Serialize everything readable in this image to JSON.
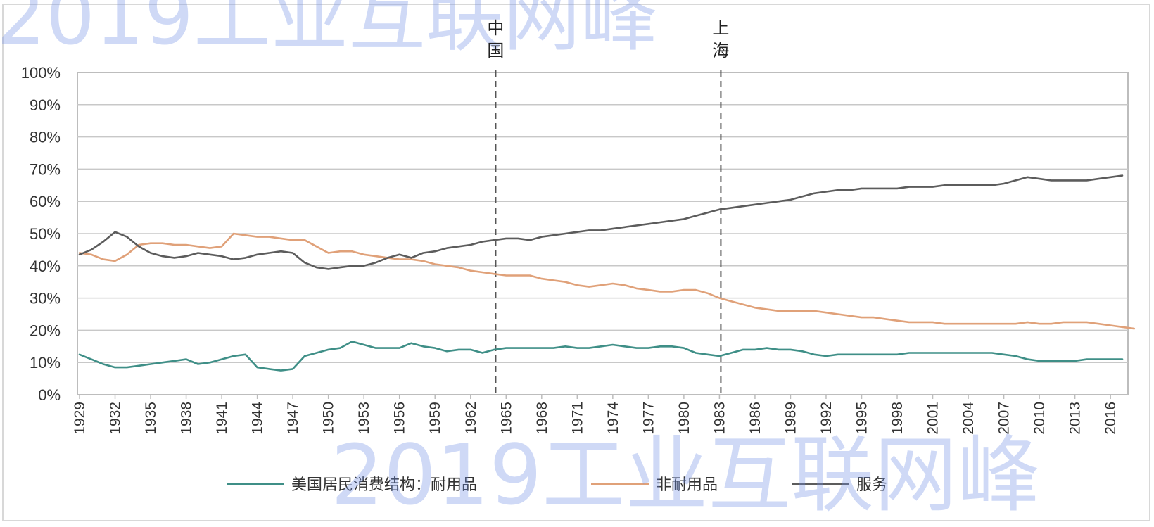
{
  "watermark": {
    "top_text": "2019工业互联网峰",
    "bottom_text": "2019工业互联网峰",
    "color": "#6f8fe6"
  },
  "chart_data": {
    "type": "line",
    "title": "",
    "xlabel": "",
    "ylabel": "",
    "ylim": [
      0,
      100
    ],
    "y_ticks": [
      "0%",
      "10%",
      "20%",
      "30%",
      "40%",
      "50%",
      "60%",
      "70%",
      "80%",
      "90%",
      "100%"
    ],
    "x_ticks": [
      "1929",
      "1932",
      "1935",
      "1938",
      "1941",
      "1944",
      "1947",
      "1950",
      "1953",
      "1956",
      "1959",
      "1962",
      "1965",
      "1968",
      "1971",
      "1974",
      "1977",
      "1980",
      "1983",
      "1986",
      "1989",
      "1992",
      "1995",
      "1998",
      "2001",
      "2004",
      "2007",
      "2010",
      "2013",
      "2016"
    ],
    "x_start": 1929,
    "grid": true,
    "legend_position": "bottom",
    "annotations": [
      {
        "x": 1964,
        "label": "中国"
      },
      {
        "x": 1983,
        "label": "上海"
      }
    ],
    "series": [
      {
        "name": "美国居民消费结构：耐用品",
        "color": "#3f8f87",
        "values": [
          12.5,
          11,
          9.5,
          8.5,
          8.5,
          9,
          9.5,
          10,
          10.5,
          11,
          9.5,
          10,
          11,
          12,
          12.5,
          8.5,
          8,
          7.5,
          8,
          12,
          13,
          14,
          14.5,
          16.5,
          15.5,
          14.5,
          14.5,
          14.5,
          16,
          15,
          14.5,
          13.5,
          14,
          14,
          13,
          14,
          14.5,
          14.5,
          14.5,
          14.5,
          14.5,
          15,
          14.5,
          14.5,
          15,
          15.5,
          15,
          14.5,
          14.5,
          15,
          15,
          14.5,
          13,
          12.5,
          12,
          13,
          14,
          14,
          14.5,
          14,
          14,
          13.5,
          12.5,
          12,
          12.5,
          12.5,
          12.5,
          12.5,
          12.5,
          12.5,
          13,
          13,
          13,
          13,
          13,
          13,
          13,
          13,
          12.5,
          12,
          11,
          10.5,
          10.5,
          10.5,
          10.5,
          11,
          11,
          11,
          11
        ]
      },
      {
        "name": "非耐用品",
        "color": "#e0a179",
        "values": [
          44,
          43.5,
          42,
          41.5,
          43.5,
          46.5,
          47,
          47,
          46.5,
          46.5,
          46,
          45.5,
          46,
          50,
          49.5,
          49,
          49,
          48.5,
          48,
          48,
          46,
          44,
          44.5,
          44.5,
          43.5,
          43,
          42.5,
          42,
          42,
          41.5,
          40.5,
          40,
          39.5,
          38.5,
          38,
          37.5,
          37,
          37,
          37,
          36,
          35.5,
          35,
          34,
          33.5,
          34,
          34.5,
          34,
          33,
          32.5,
          32,
          32,
          32.5,
          32.5,
          31.5,
          30,
          29,
          28,
          27,
          26.5,
          26,
          26,
          26,
          26,
          25.5,
          25,
          24.5,
          24,
          24,
          23.5,
          23,
          22.5,
          22.5,
          22.5,
          22,
          22,
          22,
          22,
          22,
          22,
          22,
          22.5,
          22,
          22,
          22.5,
          22.5,
          22.5,
          22,
          21.5,
          21,
          20.5
        ]
      },
      {
        "name": "服务",
        "color": "#5c5c5c",
        "values": [
          43.5,
          45,
          47.5,
          50.5,
          49,
          46,
          44,
          43,
          42.5,
          43,
          44,
          43.5,
          43,
          42,
          42.5,
          43.5,
          44,
          44.5,
          44,
          41,
          39.5,
          39,
          39.5,
          40,
          40,
          41,
          42.5,
          43.5,
          42.5,
          44,
          44.5,
          45.5,
          46,
          46.5,
          47.5,
          48,
          48.5,
          48.5,
          48,
          49,
          49.5,
          50,
          50.5,
          51,
          51,
          51.5,
          52,
          52.5,
          53,
          53.5,
          54,
          54.5,
          55.5,
          56.5,
          57.5,
          58,
          58.5,
          59,
          59.5,
          60,
          60.5,
          61.5,
          62.5,
          63,
          63.5,
          63.5,
          64,
          64,
          64,
          64,
          64.5,
          64.5,
          64.5,
          65,
          65,
          65,
          65,
          65,
          65.5,
          66.5,
          67.5,
          67,
          66.5,
          66.5,
          66.5,
          66.5,
          67,
          67.5,
          68
        ]
      }
    ]
  }
}
